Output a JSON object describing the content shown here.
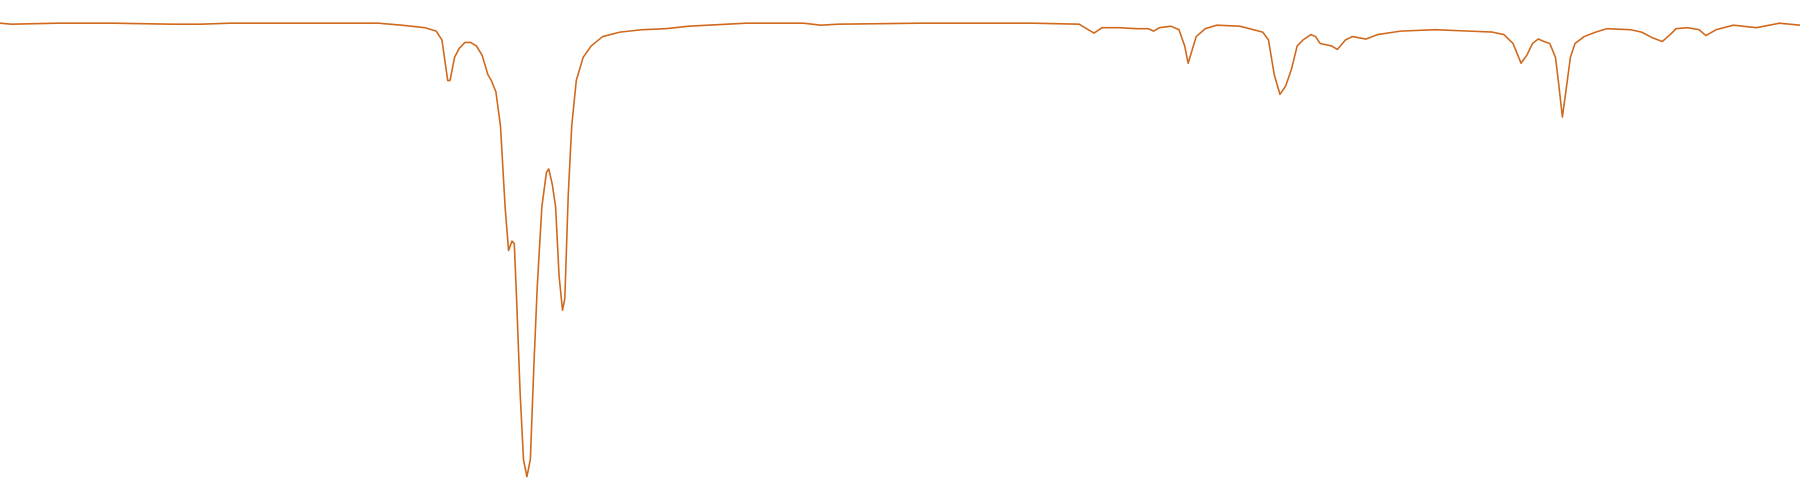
{
  "chart_data": {
    "type": "line",
    "x": [
      0,
      10,
      50,
      100,
      150,
      175,
      200,
      250,
      300,
      330,
      350,
      370,
      380,
      385,
      390,
      392,
      396,
      400,
      405,
      410,
      415,
      420,
      425,
      428,
      432,
      436,
      440,
      443,
      446,
      448,
      450,
      453,
      456,
      459,
      462,
      465,
      468,
      472,
      476,
      478,
      481,
      484,
      487,
      490,
      492,
      495,
      498,
      502,
      508,
      515,
      525,
      540,
      560,
      580,
      600,
      650,
      700,
      715,
      730,
      800,
      900,
      940,
      948,
      953,
      960,
      975,
      990,
      1000,
      1005,
      1010,
      1020,
      1027,
      1032,
      1035,
      1038,
      1042,
      1050,
      1060,
      1080,
      1100,
      1105,
      1110,
      1115,
      1120,
      1125,
      1130,
      1135,
      1142,
      1146,
      1150,
      1160,
      1165,
      1172,
      1178,
      1190,
      1200,
      1220,
      1250,
      1280,
      1300,
      1310,
      1318,
      1325,
      1330,
      1335,
      1340,
      1345,
      1350,
      1355,
      1358,
      1361,
      1364,
      1368,
      1372,
      1380,
      1390,
      1400,
      1420,
      1430,
      1440,
      1448,
      1455,
      1460,
      1470,
      1480,
      1486,
      1495,
      1510,
      1530,
      1550,
      1568
    ],
    "series": [
      {
        "color": "#d0691c",
        "values": [
          95.3,
          95.1,
          95.3,
          95.3,
          95.1,
          95.1,
          95.3,
          95.3,
          95.3,
          95.3,
          94.9,
          94.4,
          93.7,
          91.9,
          83.7,
          83.7,
          88.4,
          90.2,
          91.4,
          91.4,
          90.7,
          88.8,
          84.9,
          83.7,
          81.4,
          74.4,
          58.1,
          49.3,
          51.2,
          50.7,
          39.5,
          20.9,
          7.0,
          3.5,
          7.0,
          25.6,
          41.9,
          58.1,
          65.1,
          65.8,
          62.8,
          58.1,
          44.2,
          37.2,
          39.5,
          60.5,
          74.4,
          83.7,
          88.4,
          90.7,
          92.6,
          93.5,
          94.0,
          94.2,
          94.7,
          95.3,
          95.3,
          94.9,
          95.1,
          95.3,
          95.3,
          95.1,
          94.0,
          93.3,
          94.4,
          94.4,
          94.2,
          94.2,
          93.7,
          94.4,
          94.7,
          94.0,
          90.7,
          87.2,
          89.5,
          92.6,
          94.2,
          94.9,
          94.7,
          93.5,
          91.9,
          84.9,
          80.9,
          82.6,
          86.0,
          90.7,
          91.9,
          93.0,
          92.6,
          91.2,
          90.7,
          90.0,
          91.9,
          92.6,
          92.1,
          93.0,
          93.7,
          94.0,
          93.7,
          93.5,
          93.0,
          91.2,
          87.2,
          88.8,
          91.2,
          92.1,
          91.6,
          91.2,
          88.4,
          82.6,
          76.3,
          81.4,
          88.4,
          91.2,
          92.6,
          93.5,
          94.2,
          94.0,
          93.5,
          92.3,
          91.6,
          93.0,
          94.2,
          94.4,
          94.0,
          92.8,
          94.0,
          94.9,
          94.4,
          95.3,
          94.9
        ]
      }
    ],
    "xlim": [
      0,
      1568
    ],
    "ylim": [
      0,
      100
    ],
    "grid": false
  }
}
